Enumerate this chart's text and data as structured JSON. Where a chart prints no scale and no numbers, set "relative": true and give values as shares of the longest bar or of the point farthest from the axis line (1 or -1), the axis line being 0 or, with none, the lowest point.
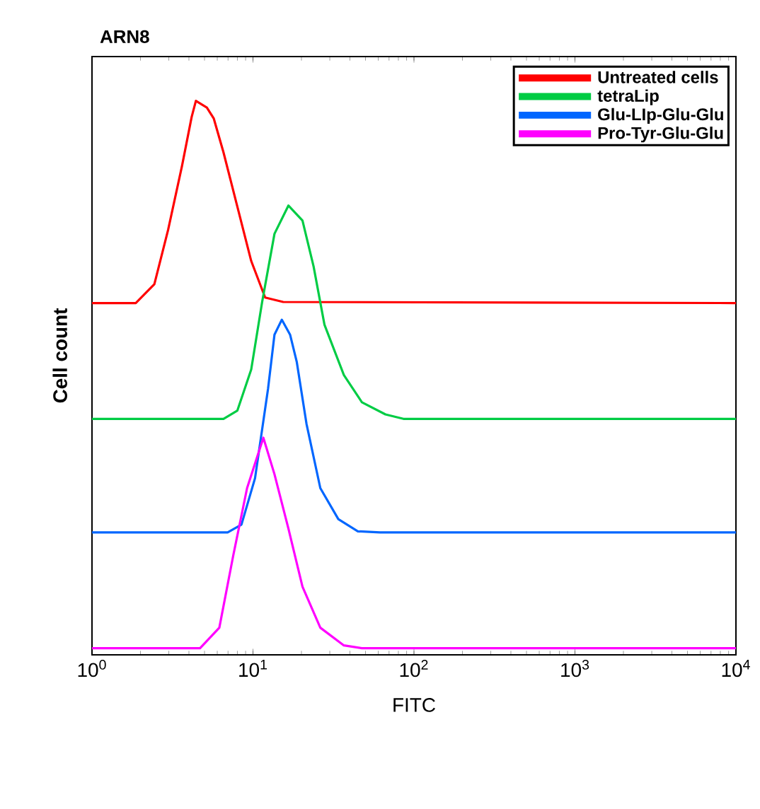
{
  "chart_data": {
    "type": "line",
    "title": "ARN8",
    "xlabel": "FITC",
    "ylabel": "Cell count",
    "log": "x",
    "relative": true,
    "legend": "top right",
    "grid": false,
    "marker": "none",
    "line_style": "solid",
    "xlim": [
      1,
      10000
    ],
    "xticks": [
      {
        "value": 1,
        "label": "10$^{0}$"
      },
      {
        "value": 10,
        "label": "10$^{1}$"
      },
      {
        "value": 100,
        "label": "10$^{2}$"
      },
      {
        "value": 1000,
        "label": "10$^{3}$"
      },
      {
        "value": 10000,
        "label": "10$^{4}$"
      }
    ],
    "series": [
      {
        "name": "Untreated cells",
        "color": "#ff0000",
        "x": [
          1,
          1.87,
          2.44,
          2.97,
          3.62,
          4.16,
          4.42,
          5.17,
          5.71,
          6.56,
          8.0,
          9.75,
          11.9,
          15.4,
          10000
        ],
        "values": [
          0.635,
          0.635,
          0.669,
          0.767,
          0.882,
          0.971,
          1.0,
          0.988,
          0.968,
          0.907,
          0.809,
          0.711,
          0.645,
          0.637,
          0.635
        ]
      },
      {
        "name": "tetraLip",
        "color": "#00cc44",
        "x": [
          1,
          6.56,
          8.0,
          9.75,
          11.4,
          13.6,
          16.6,
          20.3,
          23.8,
          27.8,
          36.7,
          47.5,
          66.5,
          86.0,
          10000
        ],
        "values": [
          0.426,
          0.426,
          0.441,
          0.515,
          0.637,
          0.76,
          0.811,
          0.784,
          0.701,
          0.596,
          0.505,
          0.456,
          0.434,
          0.426,
          0.426
        ]
      },
      {
        "name": "Glu-LIp-Glu-Glu",
        "color": "#0066ff",
        "x": [
          1,
          6.96,
          8.48,
          10.3,
          12.4,
          13.6,
          15.1,
          17.0,
          18.7,
          21.5,
          26.2,
          33.9,
          44.8,
          61.5,
          10000
        ],
        "values": [
          0.221,
          0.221,
          0.235,
          0.319,
          0.48,
          0.578,
          0.605,
          0.578,
          0.529,
          0.417,
          0.301,
          0.245,
          0.223,
          0.221,
          0.221
        ]
      },
      {
        "name": "Pro-Tyr-Glu-Glu",
        "color": "#ff00ff",
        "x": [
          1,
          4.69,
          6.18,
          7.54,
          9.19,
          11.6,
          13.6,
          16.6,
          20.3,
          26.2,
          36.7,
          47.5,
          10000
        ],
        "values": [
          0.012,
          0.012,
          0.049,
          0.179,
          0.301,
          0.392,
          0.326,
          0.228,
          0.123,
          0.049,
          0.017,
          0.012,
          0.012
        ]
      }
    ]
  }
}
